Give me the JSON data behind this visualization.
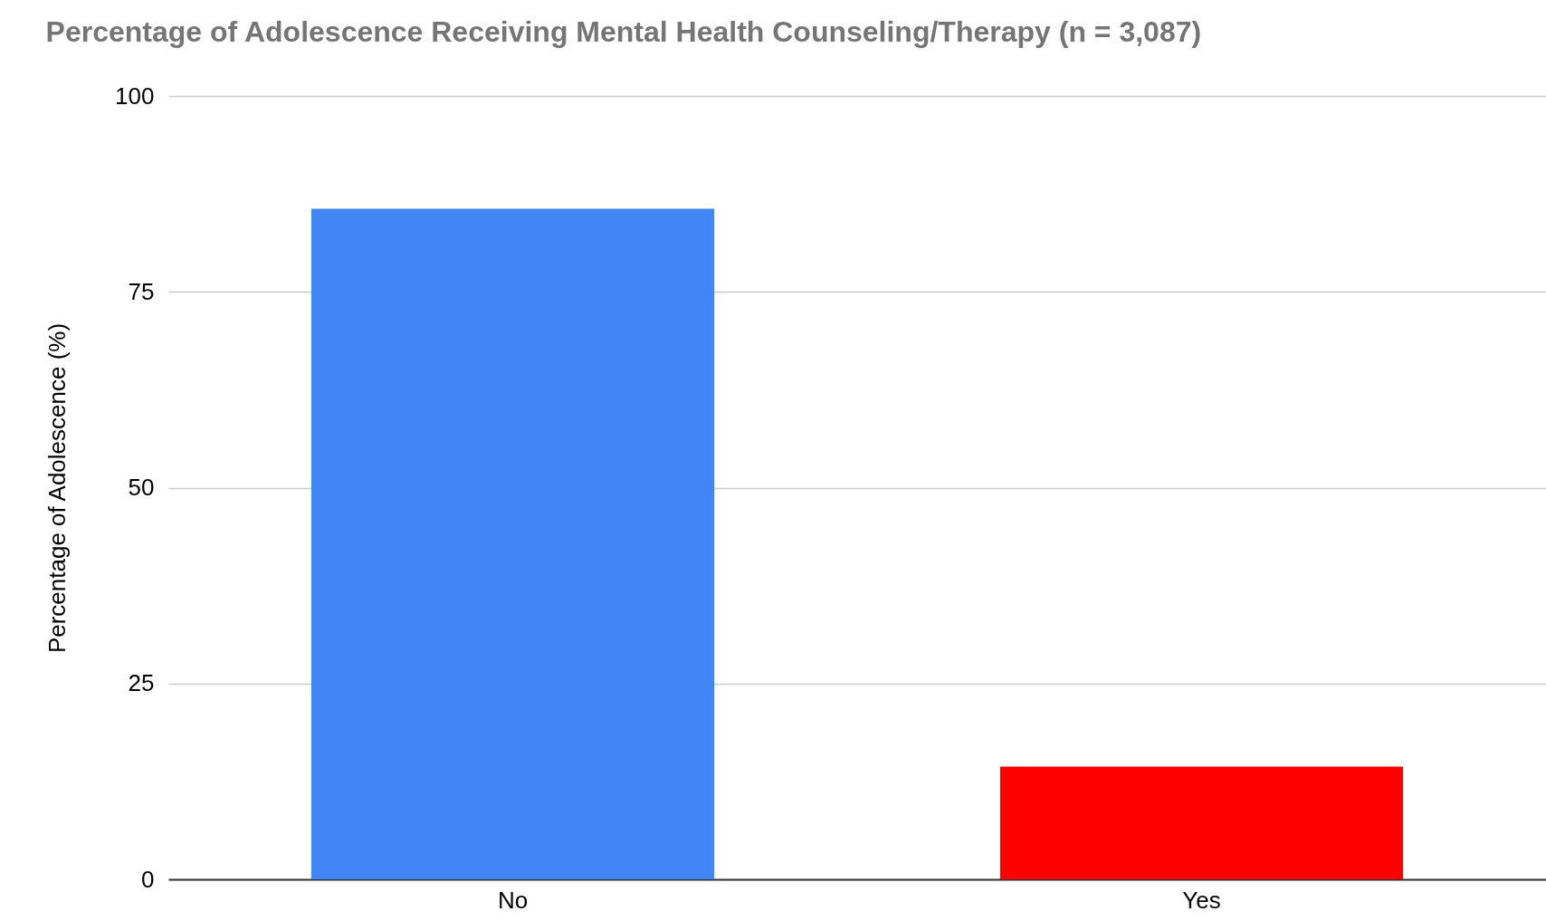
{
  "chart_data": {
    "type": "bar",
    "title": "Percentage of Adolescence Receiving Mental Health Counseling/Therapy (n = 3,087)",
    "ylabel": "Percentage of Adolescence (%)",
    "categories": [
      "No",
      "Yes"
    ],
    "values": [
      85.6,
      14.4
    ],
    "colors": [
      "#4285f4",
      "#ff0000"
    ],
    "ylim": [
      0,
      100
    ],
    "yticks": [
      0,
      25,
      50,
      75,
      100
    ],
    "grid": "y"
  }
}
